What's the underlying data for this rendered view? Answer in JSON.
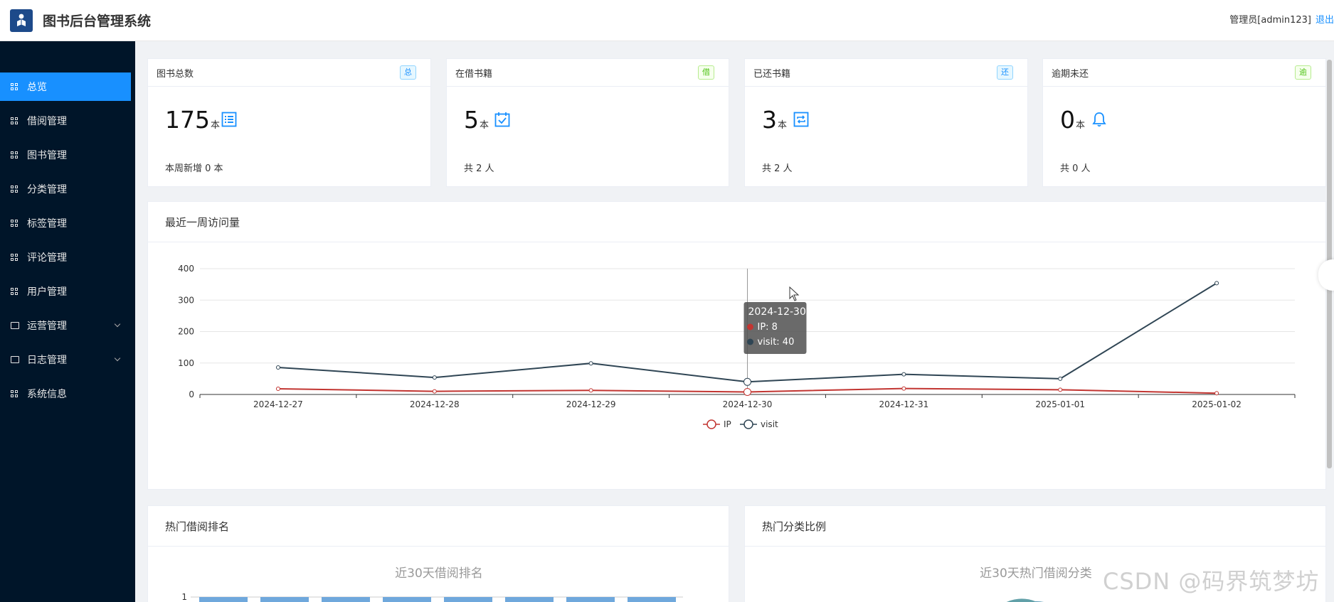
{
  "header": {
    "title": "图书后台管理系统",
    "user_label": "管理员[admin123]",
    "logout": "退出"
  },
  "sidebar": {
    "items": [
      {
        "label": "总览",
        "active": true
      },
      {
        "label": "借阅管理"
      },
      {
        "label": "图书管理"
      },
      {
        "label": "分类管理"
      },
      {
        "label": "标签管理"
      },
      {
        "label": "评论管理"
      },
      {
        "label": "用户管理"
      },
      {
        "label": "运营管理",
        "expandable": true
      },
      {
        "label": "日志管理",
        "expandable": true
      },
      {
        "label": "系统信息"
      }
    ]
  },
  "stats": [
    {
      "title": "图书总数",
      "tag": "总",
      "tag_color": "blue",
      "value": "175",
      "unit": "本",
      "sub": "本周新增 0 本",
      "icon": "list-icon"
    },
    {
      "title": "在借书籍",
      "tag": "借",
      "tag_color": "green",
      "value": "5",
      "unit": "本",
      "sub": "共 2 人",
      "icon": "calendar-check-icon"
    },
    {
      "title": "已还书籍",
      "tag": "还",
      "tag_color": "blue",
      "value": "3",
      "unit": "本",
      "sub": "共 2 人",
      "icon": "refresh-icon"
    },
    {
      "title": "逾期未还",
      "tag": "逾",
      "tag_color": "green",
      "value": "0",
      "unit": "本",
      "sub": "共 0 人",
      "icon": "bell-icon"
    }
  ],
  "visits_panel": {
    "title": "最近一周访问量"
  },
  "chart_data": {
    "type": "line",
    "categories": [
      "2024-12-27",
      "2024-12-28",
      "2024-12-29",
      "2024-12-30",
      "2024-12-31",
      "2025-01-01",
      "2025-01-02"
    ],
    "series": [
      {
        "name": "IP",
        "color": "#c23531",
        "values": [
          18,
          10,
          13,
          8,
          19,
          15,
          4
        ]
      },
      {
        "name": "visit",
        "color": "#2f4554",
        "values": [
          86,
          54,
          99,
          40,
          64,
          50,
          354
        ]
      }
    ],
    "ylim": [
      0,
      400
    ],
    "yticks": [
      0,
      100,
      200,
      300,
      400
    ],
    "legend": "bottom-center",
    "tooltip": {
      "title": "2024-12-30",
      "lines": [
        "IP: 8",
        "visit: 40"
      ]
    }
  },
  "borrow_panel": {
    "title": "热门借阅排名",
    "chart_title": "近30天借阅排名",
    "y_tick": "1"
  },
  "category_panel": {
    "title": "热门分类比例",
    "chart_title": "近30天热门借阅分类"
  },
  "watermark": "CSDN @码界筑梦坊"
}
